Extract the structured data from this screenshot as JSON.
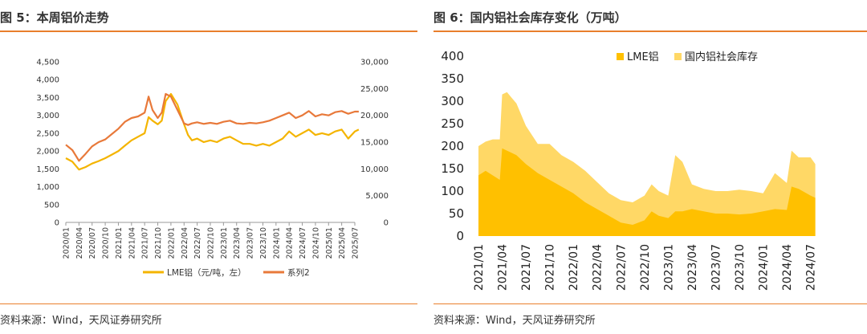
{
  "charts": [
    {
      "title": "图 5：本周铝价走势",
      "source": "资料来源：Wind，天风证券研究所",
      "chart_data": {
        "type": "line",
        "title": "图 5：本周铝价走势",
        "x_ticks": [
          "2020/01",
          "2020/04",
          "2020/07",
          "2020/10",
          "2021/01",
          "2021/04",
          "2021/07",
          "2021/10",
          "2022/01",
          "2022/04",
          "2022/07",
          "2022/10",
          "2023/01",
          "2023/04",
          "2023/07",
          "2023/10",
          "2024/01",
          "2024/04",
          "2024/07",
          "2024/10",
          "2025/01",
          "2025/04",
          "2025/07"
        ],
        "y_left": {
          "min": 0,
          "max": 4500,
          "ticks": [
            "0",
            "500",
            "1,000",
            "1,500",
            "2,000",
            "2,500",
            "3,000",
            "3,500",
            "4,000",
            "4,500"
          ]
        },
        "y_right": {
          "min": 0,
          "max": 30000,
          "ticks": [
            "0",
            "5,000",
            "10,000",
            "15,000",
            "20,000",
            "25,000",
            "30,000"
          ]
        },
        "series": [
          {
            "name": "LME铝（元/吨，左）",
            "axis": "left",
            "color": "#f4b400",
            "x": [
              0,
              0.5,
              1,
              1.5,
              2,
              2.5,
              3,
              3.5,
              4,
              4.5,
              5,
              5.5,
              6,
              6.3,
              6.6,
              7,
              7.3,
              7.6,
              8,
              8.5,
              9,
              9.3,
              9.6,
              10,
              10.5,
              11,
              11.5,
              12,
              12.5,
              13,
              13.5,
              14,
              14.5,
              15,
              15.5,
              16,
              16.5,
              17,
              17.5,
              18,
              18.5,
              19,
              19.5,
              20,
              20.5,
              21,
              21.5,
              22,
              22.3
            ],
            "values": [
              1800,
              1700,
              1480,
              1550,
              1650,
              1720,
              1800,
              1900,
              2000,
              2150,
              2300,
              2400,
              2500,
              2950,
              2850,
              2750,
              2850,
              3400,
              3600,
              3300,
              2750,
              2450,
              2300,
              2350,
              2250,
              2300,
              2250,
              2350,
              2400,
              2300,
              2200,
              2200,
              2150,
              2200,
              2150,
              2250,
              2350,
              2550,
              2400,
              2500,
              2600,
              2450,
              2500,
              2450,
              2550,
              2600,
              2350,
              2550,
              2600
            ]
          },
          {
            "name": "系列2",
            "axis": "right",
            "color": "#e8793a",
            "x": [
              0,
              0.5,
              1,
              1.5,
              2,
              2.5,
              3,
              3.5,
              4,
              4.5,
              5,
              5.5,
              6,
              6.3,
              6.6,
              7,
              7.3,
              7.6,
              8,
              8.5,
              9,
              9.3,
              9.6,
              10,
              10.5,
              11,
              11.5,
              12,
              12.5,
              13,
              13.5,
              14,
              14.5,
              15,
              15.5,
              16,
              16.5,
              17,
              17.5,
              18,
              18.5,
              19,
              19.5,
              20,
              20.5,
              21,
              21.5,
              22,
              22.3
            ],
            "values": [
              14500,
              13500,
              11500,
              12800,
              14200,
              15000,
              15500,
              16500,
              17500,
              18800,
              19500,
              19800,
              20500,
              23500,
              21000,
              19500,
              20500,
              24000,
              23500,
              21000,
              18500,
              18200,
              18500,
              18700,
              18400,
              18600,
              18400,
              18800,
              19000,
              18500,
              18400,
              18600,
              18500,
              18700,
              19000,
              19500,
              20000,
              20500,
              19500,
              20000,
              20800,
              19800,
              20200,
              20000,
              20600,
              20800,
              20300,
              20700,
              20700
            ]
          }
        ]
      }
    },
    {
      "title": "图 6：国内铝社会库存变化（万吨）",
      "source": "资料来源：Wind，天风证券研究所",
      "chart_data": {
        "type": "area",
        "title": "图 6：国内铝社会库存变化（万吨）",
        "stacked": true,
        "x_ticks": [
          "2021/01",
          "2021/04",
          "2021/07",
          "2021/10",
          "2022/01",
          "2022/04",
          "2022/07",
          "2022/10",
          "2023/01",
          "2023/04",
          "2023/07",
          "2023/10",
          "2024/01",
          "2024/04",
          "2024/07"
        ],
        "ylim": [
          0,
          400
        ],
        "y_ticks": [
          "0",
          "50",
          "100",
          "150",
          "200",
          "250",
          "300",
          "350",
          "400"
        ],
        "series": [
          {
            "name": "LME铝",
            "color": "#ffc000",
            "x": [
              0,
              0.3,
              0.6,
              0.9,
              1.0,
              1.2,
              1.6,
              2.0,
              2.5,
              3.0,
              3.5,
              4.0,
              4.5,
              5.0,
              5.5,
              6.0,
              6.5,
              7.0,
              7.3,
              7.6,
              8.0,
              8.3,
              8.6,
              9.0,
              9.5,
              10,
              10.5,
              11,
              11.5,
              12,
              12.5,
              13,
              13.2,
              13.5,
              14,
              14.2
            ],
            "values": [
              135,
              145,
              135,
              125,
              195,
              190,
              180,
              160,
              140,
              125,
              110,
              95,
              75,
              60,
              45,
              30,
              25,
              35,
              55,
              45,
              40,
              55,
              55,
              60,
              55,
              50,
              50,
              48,
              50,
              55,
              60,
              58,
              110,
              105,
              90,
              85
            ]
          },
          {
            "name": "国内铝社会库存",
            "color": "#ffd866",
            "x": [
              0,
              0.3,
              0.6,
              0.9,
              1.0,
              1.2,
              1.6,
              2.0,
              2.5,
              3.0,
              3.5,
              4.0,
              4.5,
              5.0,
              5.5,
              6.0,
              6.5,
              7.0,
              7.3,
              7.6,
              8.0,
              8.3,
              8.6,
              9.0,
              9.5,
              10,
              10.5,
              11,
              11.5,
              12,
              12.5,
              13,
              13.2,
              13.5,
              14,
              14.2
            ],
            "values": [
              65,
              65,
              80,
              90,
              120,
              130,
              115,
              85,
              65,
              80,
              70,
              70,
              70,
              60,
              50,
              50,
              50,
              55,
              60,
              55,
              50,
              125,
              110,
              55,
              50,
              50,
              50,
              55,
              50,
              40,
              80,
              60,
              80,
              70,
              85,
              75
            ]
          }
        ]
      }
    }
  ]
}
